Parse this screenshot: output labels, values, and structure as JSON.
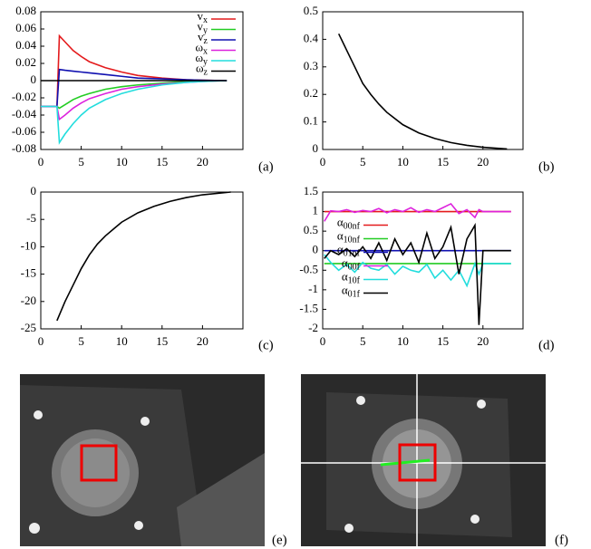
{
  "chart_data": [
    {
      "type": "line",
      "label": "(a)",
      "legend": "upper right",
      "x": [
        0,
        2,
        2.3,
        3,
        4,
        5,
        6,
        8,
        10,
        12,
        15,
        18,
        20,
        23
      ],
      "xlim": [
        0,
        25
      ],
      "xticks": [
        0,
        5,
        10,
        15,
        20
      ],
      "ylim": [
        -0.08,
        0.08
      ],
      "yticks": [
        -0.08,
        -0.06,
        -0.04,
        -0.02,
        0,
        0.02,
        0.04,
        0.06,
        0.08
      ],
      "series": [
        {
          "name": "vx",
          "color": "#e41a1c",
          "values": [
            -0.03,
            -0.03,
            0.052,
            0.045,
            0.035,
            0.028,
            0.022,
            0.015,
            0.01,
            0.006,
            0.003,
            0.001,
            0.0005,
            0
          ]
        },
        {
          "name": "vy",
          "color": "#22cc22",
          "values": [
            -0.03,
            -0.03,
            -0.032,
            -0.028,
            -0.022,
            -0.018,
            -0.015,
            -0.01,
            -0.007,
            -0.005,
            -0.003,
            -0.001,
            -0.0005,
            0
          ]
        },
        {
          "name": "vz",
          "color": "#1010b0",
          "values": [
            -0.03,
            -0.03,
            0.013,
            0.012,
            0.011,
            0.01,
            0.009,
            0.007,
            0.005,
            0.003,
            0.002,
            0.001,
            0.0005,
            0
          ]
        },
        {
          "name": "ωx",
          "color": "#dd22dd",
          "values": [
            -0.03,
            -0.03,
            -0.045,
            -0.04,
            -0.032,
            -0.026,
            -0.021,
            -0.015,
            -0.01,
            -0.007,
            -0.004,
            -0.002,
            -0.001,
            0
          ]
        },
        {
          "name": "ωy",
          "color": "#22dddd",
          "values": [
            -0.03,
            -0.03,
            -0.072,
            -0.062,
            -0.05,
            -0.04,
            -0.032,
            -0.022,
            -0.015,
            -0.01,
            -0.005,
            -0.002,
            -0.001,
            0
          ]
        },
        {
          "name": "ωz",
          "color": "#000000",
          "values": [
            0,
            0,
            0,
            0,
            0,
            0,
            0,
            0,
            0,
            0,
            0,
            0,
            0,
            0
          ]
        }
      ]
    },
    {
      "type": "line",
      "label": "(b)",
      "x": [
        2,
        3,
        4,
        5,
        6,
        7,
        8,
        10,
        12,
        14,
        16,
        18,
        20,
        23
      ],
      "xlim": [
        0,
        25
      ],
      "xticks": [
        0,
        5,
        10,
        15,
        20
      ],
      "ylim": [
        0,
        0.5
      ],
      "yticks": [
        0,
        0.1,
        0.2,
        0.3,
        0.4,
        0.5
      ],
      "series": [
        {
          "color": "#000000",
          "values": [
            0.42,
            0.36,
            0.3,
            0.24,
            0.2,
            0.165,
            0.135,
            0.09,
            0.06,
            0.04,
            0.025,
            0.015,
            0.008,
            0.002
          ]
        }
      ]
    },
    {
      "type": "line",
      "label": "(c)",
      "x": [
        2,
        3,
        4,
        5,
        6,
        7,
        8,
        10,
        12,
        14,
        16,
        18,
        20,
        23.5
      ],
      "xlim": [
        0,
        25
      ],
      "xticks": [
        0,
        5,
        10,
        15,
        20
      ],
      "ylim": [
        -25,
        0
      ],
      "yticks": [
        -25,
        -20,
        -15,
        -10,
        -5,
        0
      ],
      "series": [
        {
          "color": "#000000",
          "values": [
            -23.5,
            -20,
            -17,
            -14,
            -11.5,
            -9.5,
            -8,
            -5.5,
            -3.8,
            -2.6,
            -1.7,
            -1,
            -0.5,
            0
          ]
        }
      ]
    },
    {
      "type": "line",
      "label": "(d)",
      "legend": "center left",
      "x": [
        0.2,
        1,
        2,
        3,
        4,
        5,
        6,
        7,
        8,
        9,
        10,
        11,
        12,
        13,
        14,
        15,
        16,
        17,
        18,
        19,
        19.5,
        20,
        21,
        23.5
      ],
      "xlim": [
        0,
        25
      ],
      "xticks": [
        0,
        5,
        10,
        15,
        20
      ],
      "ylim": [
        -2,
        1.5
      ],
      "yticks": [
        -2,
        -1.5,
        -1,
        -0.5,
        0,
        0.5,
        1,
        1.5
      ],
      "series": [
        {
          "name": "α00nf",
          "color": "#e41a1c",
          "values": [
            1,
            1,
            1,
            1,
            1,
            1,
            1,
            1,
            1,
            1,
            1,
            1,
            1,
            1,
            1,
            1,
            1,
            1,
            1,
            1,
            1,
            1,
            1,
            1
          ]
        },
        {
          "name": "α10nf",
          "color": "#22cc22",
          "values": [
            -0.33,
            -0.33,
            -0.33,
            -0.33,
            -0.33,
            -0.33,
            -0.33,
            -0.33,
            -0.33,
            -0.33,
            -0.33,
            -0.33,
            -0.33,
            -0.33,
            -0.33,
            -0.33,
            -0.33,
            -0.33,
            -0.33,
            -0.33,
            -0.33,
            -0.33,
            -0.33,
            -0.33
          ]
        },
        {
          "name": "α01nf",
          "color": "#1010b0",
          "values": [
            0,
            0,
            0,
            0,
            0,
            0,
            0,
            0,
            0,
            0,
            0,
            0,
            0,
            0,
            0,
            0,
            0,
            0,
            0,
            0,
            0,
            0,
            0,
            0
          ]
        },
        {
          "name": "α00f",
          "color": "#dd22dd",
          "values": [
            0.75,
            1.02,
            1,
            1.05,
            0.98,
            1.03,
            1,
            1.08,
            0.97,
            1.05,
            1,
            1.1,
            0.98,
            1.05,
            1,
            1.1,
            1.2,
            0.95,
            1.05,
            0.85,
            1.05,
            1,
            1,
            1
          ]
        },
        {
          "name": "α10f",
          "color": "#22dddd",
          "values": [
            -0.1,
            -0.3,
            -0.5,
            -0.35,
            -0.55,
            -0.3,
            -0.45,
            -0.5,
            -0.35,
            -0.6,
            -0.4,
            -0.5,
            -0.55,
            -0.35,
            -0.7,
            -0.5,
            -0.75,
            -0.5,
            -0.9,
            -0.33,
            -0.6,
            -0.33,
            -0.33,
            -0.33
          ]
        },
        {
          "name": "α01f",
          "color": "#000000",
          "values": [
            -0.2,
            0,
            -0.1,
            0.05,
            -0.15,
            0.1,
            -0.2,
            0.2,
            -0.25,
            0.3,
            -0.1,
            0.2,
            -0.3,
            0.45,
            -0.2,
            0.1,
            0.6,
            -0.6,
            0.3,
            0.65,
            -1.9,
            0,
            0,
            0
          ]
        }
      ]
    }
  ],
  "images": [
    {
      "label": "(e)"
    },
    {
      "label": "(f)"
    }
  ]
}
